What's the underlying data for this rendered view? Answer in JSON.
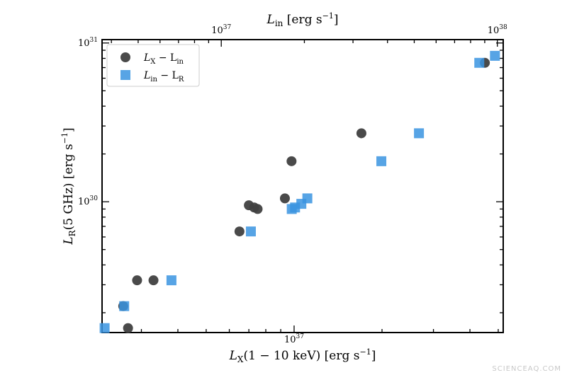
{
  "chart_data": {
    "type": "scatter",
    "title": "",
    "xlabel": "L_X(1 − 10 keV) [erg s⁻¹]",
    "ylabel": "L_R(5 GHz) [erg s⁻¹]",
    "x2label": "L_in [erg s⁻¹]",
    "x_scale": "log",
    "y_scale": "log",
    "x2_scale": "log",
    "xlim": [
      2.2e+36,
      5.2e+37
    ],
    "ylim": [
      1.5e+29,
      1.05e+31
    ],
    "x2lim": [
      3.7e+36,
      1.05e+38
    ],
    "xticks": [
      {
        "value": 1e+37,
        "label": "10^37"
      }
    ],
    "yticks": [
      {
        "value": 1e+30,
        "label": "10^30"
      },
      {
        "value": 1e+31,
        "label": "10^31"
      }
    ],
    "x2ticks": [
      {
        "value": 1e+37,
        "label": "10^37"
      },
      {
        "value": 1e+38,
        "label": "10^38"
      }
    ],
    "grid": false,
    "legend_position": "top-left",
    "series": [
      {
        "name": "L_X − L_in",
        "marker": "circle",
        "color": "#404040",
        "axis": "bottom",
        "points": [
          {
            "x": 2.6e+36,
            "y": 2.2e+29
          },
          {
            "x": 2.7e+36,
            "y": 1.6e+29
          },
          {
            "x": 2.9e+36,
            "y": 3.2e+29
          },
          {
            "x": 3.3e+36,
            "y": 3.2e+29
          },
          {
            "x": 6.5e+36,
            "y": 6.5e+29
          },
          {
            "x": 7e+36,
            "y": 9.5e+29
          },
          {
            "x": 7.3e+36,
            "y": 9.2e+29
          },
          {
            "x": 7.5e+36,
            "y": 9e+29
          },
          {
            "x": 9.3e+36,
            "y": 1.05e+30
          },
          {
            "x": 9.8e+36,
            "y": 1.8e+30
          },
          {
            "x": 1.7e+37,
            "y": 2.7e+30
          },
          {
            "x": 4.5e+37,
            "y": 7.5e+30
          }
        ]
      },
      {
        "name": "L_in − L_R",
        "marker": "square",
        "color": "#3a94e0",
        "axis": "top",
        "points": [
          {
            "x": 3.78e+36,
            "y": 1.6e+29
          },
          {
            "x": 4.45e+36,
            "y": 2.2e+29
          },
          {
            "x": 6.6e+36,
            "y": 3.2e+29
          },
          {
            "x": 1.28e+37,
            "y": 6.5e+29
          },
          {
            "x": 1.8e+37,
            "y": 9e+29
          },
          {
            "x": 1.85e+37,
            "y": 9.2e+29
          },
          {
            "x": 1.95e+37,
            "y": 9.7e+29
          },
          {
            "x": 2.05e+37,
            "y": 1.05e+30
          },
          {
            "x": 3.8e+37,
            "y": 1.8e+30
          },
          {
            "x": 5.2e+37,
            "y": 2.7e+30
          },
          {
            "x": 8.6e+37,
            "y": 7.5e+30
          },
          {
            "x": 9.8e+37,
            "y": 8.3e+30
          }
        ]
      }
    ]
  },
  "legend": {
    "entries": [
      {
        "lead": "L",
        "sub": "X",
        "mid": " − L",
        "sub2": "in"
      },
      {
        "lead": "L",
        "sub": "in",
        "mid": " − L",
        "sub2": "R"
      }
    ]
  },
  "watermark": "SCIENCEAQ.COM"
}
